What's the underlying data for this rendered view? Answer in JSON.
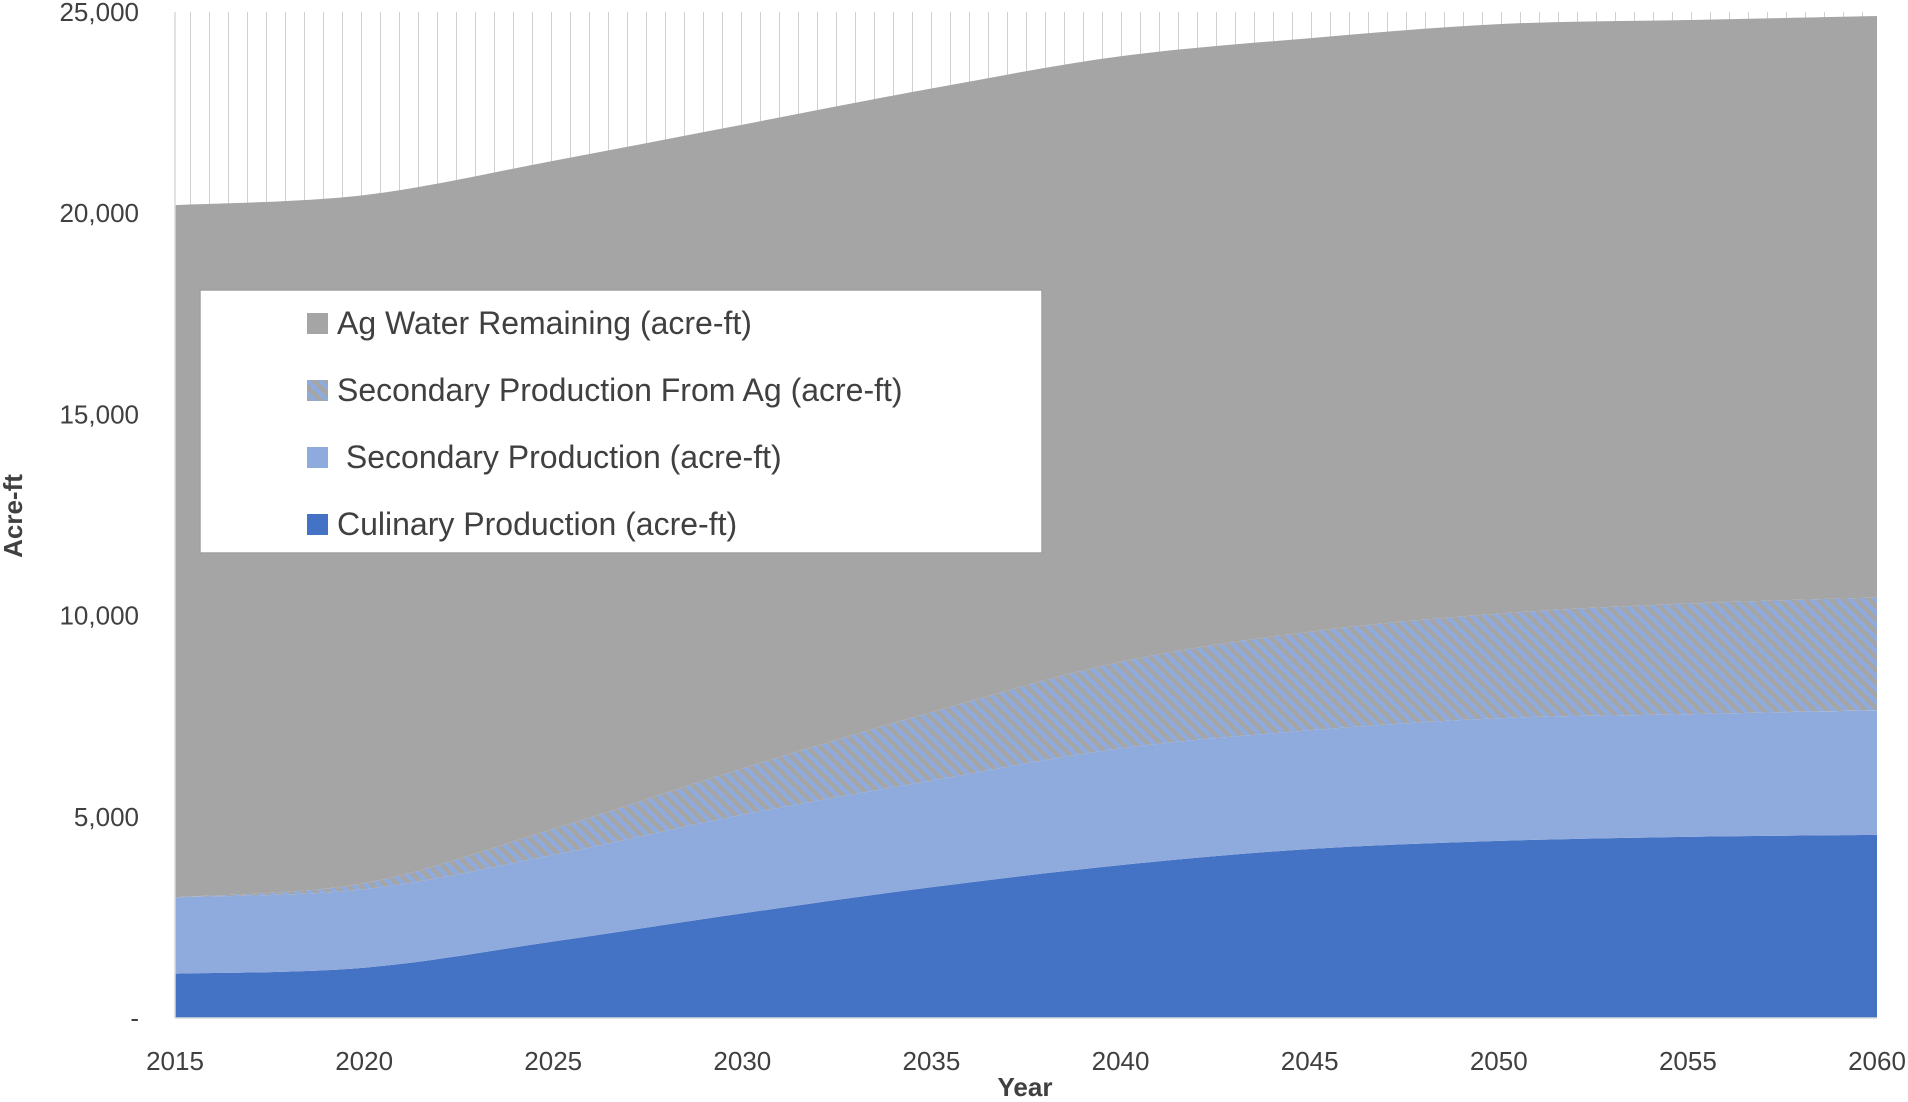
{
  "chart_data": {
    "type": "area",
    "stacked": true,
    "title": "",
    "xlabel": "Year",
    "ylabel": "Acre-ft",
    "xlim": [
      2015,
      2060
    ],
    "ylim": [
      0,
      25000
    ],
    "x_ticks": [
      "2015",
      "2020",
      "2025",
      "2030",
      "2035",
      "2040",
      "2045",
      "2050",
      "2055",
      "2060"
    ],
    "y_ticks": [
      "-",
      "5,000",
      "10,000",
      "15,000",
      "20,000",
      "25,000"
    ],
    "y_tick_values": [
      0,
      5000,
      10000,
      15000,
      20000,
      25000
    ],
    "grid": false,
    "background_hatch": "vertical lines above stack",
    "legend_position": "upper-left inside plot",
    "x": [
      2015,
      2020,
      2025,
      2030,
      2035,
      2040,
      2045,
      2050,
      2055,
      2060
    ],
    "series": [
      {
        "name": "Culinary Production (acre-ft)",
        "color": "#4472C4",
        "pattern": "solid",
        "values": [
          1100,
          1250,
          1900,
          2600,
          3250,
          3800,
          4200,
          4400,
          4500,
          4550
        ]
      },
      {
        "name": " Secondary Production (acre-ft)",
        "color": "#8FAADC",
        "pattern": "solid",
        "values": [
          1900,
          1950,
          2150,
          2450,
          2650,
          2900,
          2950,
          3050,
          3050,
          3100
        ]
      },
      {
        "name": "Secondary Production From Ag (acre-ft)",
        "color": "#8FAADC",
        "pattern": "diagonal-hatch",
        "values": [
          0,
          150,
          650,
          1150,
          1700,
          2150,
          2450,
          2600,
          2750,
          2800
        ]
      },
      {
        "name": "Ag Water Remaining (acre-ft)",
        "color": "#A5A5A5",
        "pattern": "solid",
        "values": [
          17200,
          17100,
          16600,
          16000,
          15500,
          15050,
          14750,
          14650,
          14500,
          14450
        ]
      }
    ],
    "legend_order": [
      3,
      2,
      1,
      0
    ]
  }
}
